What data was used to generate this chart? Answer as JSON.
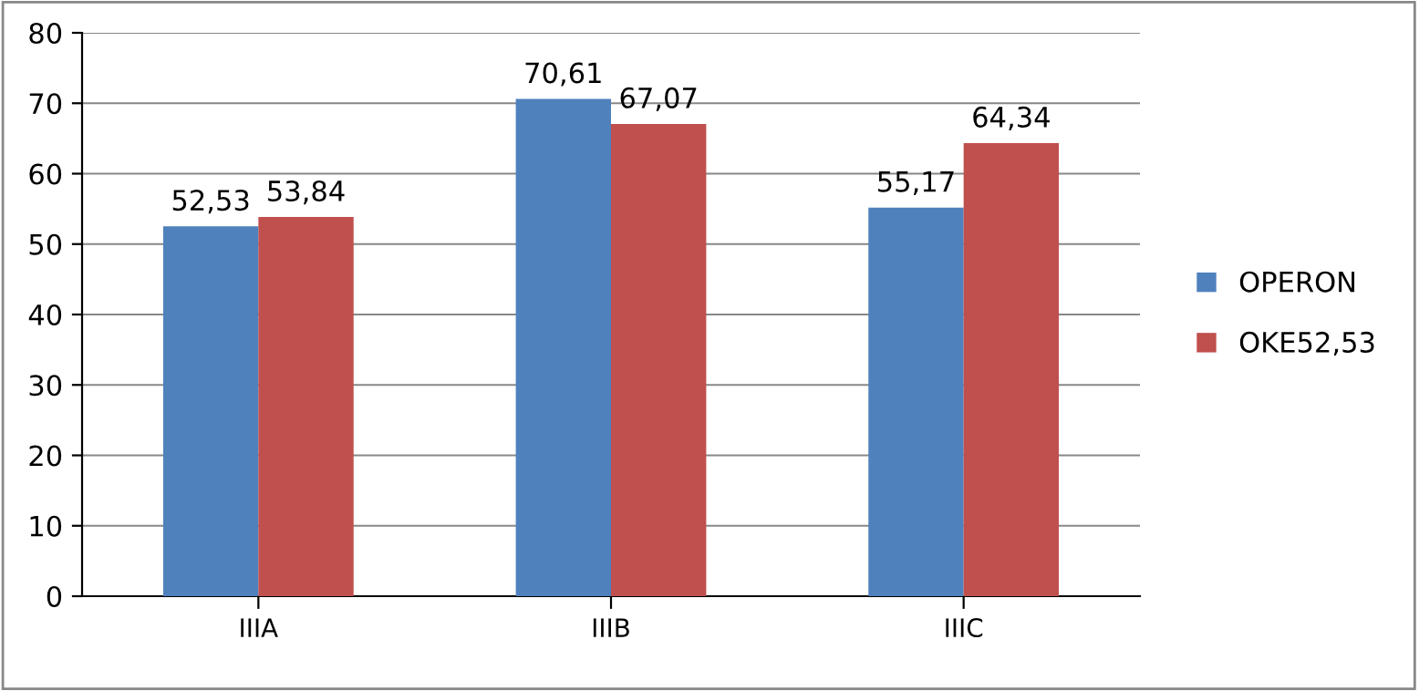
{
  "chart_data": {
    "type": "bar",
    "categories": [
      "IIIA",
      "IIIB",
      "IIIC"
    ],
    "series": [
      {
        "name": "OPERON",
        "color": "#4f81bd",
        "values": [
          52.53,
          70.61,
          55.17
        ],
        "value_labels": [
          "52,53",
          "70,61",
          "55,17"
        ]
      },
      {
        "name": "OKE52,53",
        "color": "#c0504d",
        "values": [
          53.84,
          67.07,
          64.34
        ],
        "value_labels": [
          "53,84",
          "67,07",
          "64,34"
        ]
      }
    ],
    "ylim": [
      0,
      80
    ],
    "yticks": [
      0,
      10,
      20,
      30,
      40,
      50,
      60,
      70,
      80
    ],
    "grid": "y",
    "legend": "right"
  }
}
